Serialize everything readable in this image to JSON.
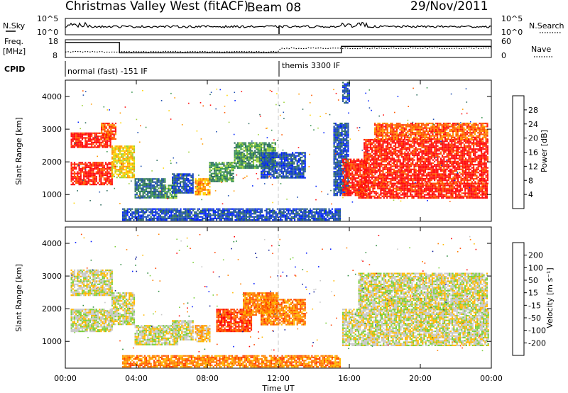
{
  "header": {
    "station": "Christmas Valley West (fitACF)",
    "beam": "Beam 08",
    "date": "29/Nov/2011"
  },
  "top_panels": {
    "nsky_label": "N.Sky",
    "nsky_ticks": [
      "10^5",
      "10^0"
    ],
    "nsearch_label": "N.Search",
    "nsearch_ticks": [
      "10^5",
      "10^0"
    ],
    "freq_label_1": "Freq.",
    "freq_label_2": "[MHz]",
    "freq_ticks": [
      "18",
      "8"
    ],
    "nave_label": "Nave",
    "nave_ticks": [
      "60",
      "0"
    ],
    "cpid_label": "CPID",
    "cpid_mode_1": "normal (fast) -151 IF",
    "cpid_mode_2": "themis 3300 IF",
    "cpid_switch_hour": 12.0,
    "freq_steps": [
      [
        0,
        16.5
      ],
      [
        3.05,
        10.6
      ],
      [
        12.05,
        10.6
      ],
      [
        15.55,
        14.3
      ],
      [
        24,
        14.3
      ]
    ]
  },
  "colors": {
    "power_scale": [
      "#0022ff",
      "#1f4fb0",
      "#2f6e60",
      "#3a9650",
      "#9ed23a",
      "#ffd400",
      "#ff9a00",
      "#ff5a00",
      "#ff1010"
    ],
    "velocity_scale": [
      "#ff0000",
      "#ff4400",
      "#ff8000",
      "#ffb800",
      "#c8c8c8",
      "#7ccf3a",
      "#2c8b3c",
      "#12209b",
      "#0018ff"
    ]
  },
  "chart_data": [
    {
      "type": "heatmap",
      "title": "Power",
      "xlabel": "Time UT",
      "ylabel": "Slant Range [km]",
      "xlim": [
        0,
        24
      ],
      "ylim": [
        180,
        4500
      ],
      "x_ticks": [
        "00:00",
        "04:00",
        "08:00",
        "12:00",
        "16:00",
        "20:00",
        "00:00"
      ],
      "y_ticks": [
        "1000",
        "2000",
        "3000",
        "4000"
      ],
      "colorbar_label": "Power [dB]",
      "colorbar_ticks": [
        "4",
        "8",
        "12",
        "16",
        "20",
        "24",
        "28"
      ],
      "regions": [
        {
          "t0": 0.3,
          "t1": 2.5,
          "r0": 2450,
          "r1": 2900,
          "level": 8
        },
        {
          "t0": 2.0,
          "t1": 2.8,
          "r0": 2700,
          "r1": 3200,
          "level": 7
        },
        {
          "t0": 0.3,
          "t1": 2.6,
          "r0": 1300,
          "r1": 2000,
          "level": 8
        },
        {
          "t0": 2.6,
          "t1": 3.9,
          "r0": 1500,
          "r1": 2500,
          "level": 5
        },
        {
          "t0": 3.9,
          "t1": 5.6,
          "r0": 900,
          "r1": 1500,
          "level": 2
        },
        {
          "t0": 5.6,
          "t1": 6.3,
          "r0": 900,
          "r1": 1300,
          "level": 3
        },
        {
          "t0": 6.0,
          "t1": 7.2,
          "r0": 1050,
          "r1": 1650,
          "level": 1
        },
        {
          "t0": 7.3,
          "t1": 8.1,
          "r0": 1000,
          "r1": 1500,
          "level": 6
        },
        {
          "t0": 8.1,
          "t1": 9.5,
          "r0": 1400,
          "r1": 2000,
          "level": 3
        },
        {
          "t0": 9.5,
          "t1": 11.8,
          "r0": 1800,
          "r1": 2600,
          "level": 3
        },
        {
          "t0": 11.0,
          "t1": 13.5,
          "r0": 1500,
          "r1": 2300,
          "level": 1
        },
        {
          "t0": 3.2,
          "t1": 15.5,
          "r0": 230,
          "r1": 580,
          "level": 1
        },
        {
          "t0": 15.1,
          "t1": 15.9,
          "r0": 1000,
          "r1": 3200,
          "level": 1
        },
        {
          "t0": 15.6,
          "t1": 16.0,
          "r0": 3800,
          "r1": 4450,
          "level": 1
        },
        {
          "t0": 15.6,
          "t1": 17.0,
          "r0": 1000,
          "r1": 2100,
          "level": 8
        },
        {
          "t0": 16.5,
          "t1": 23.8,
          "r0": 900,
          "r1": 1350,
          "level": 8
        },
        {
          "t0": 16.8,
          "t1": 23.8,
          "r0": 1350,
          "r1": 2700,
          "level": 8
        },
        {
          "t0": 17.4,
          "t1": 23.8,
          "r0": 2700,
          "r1": 3200,
          "level": 7
        }
      ]
    },
    {
      "type": "heatmap",
      "title": "Velocity",
      "xlabel": "Time UT",
      "ylabel": "Slant Range [km]",
      "xlim": [
        0,
        24
      ],
      "ylim": [
        180,
        4500
      ],
      "x_ticks": [
        "00:00",
        "04:00",
        "08:00",
        "12:00",
        "16:00",
        "20:00",
        "00:00"
      ],
      "y_ticks": [
        "1000",
        "2000",
        "3000",
        "4000"
      ],
      "colorbar_label": "Velocity [m s⁻¹]",
      "colorbar_ticks": [
        "-200",
        "-100",
        "-50",
        "-15",
        "15",
        "50",
        "100",
        "200"
      ],
      "regions": [
        {
          "t0": 0.3,
          "t1": 2.6,
          "r0": 2400,
          "r1": 3200,
          "level": 4
        },
        {
          "t0": 0.3,
          "t1": 2.6,
          "r0": 1300,
          "r1": 2000,
          "level": 4
        },
        {
          "t0": 2.6,
          "t1": 3.9,
          "r0": 1500,
          "r1": 2500,
          "level": 4
        },
        {
          "t0": 3.9,
          "t1": 6.3,
          "r0": 900,
          "r1": 1500,
          "level": 4
        },
        {
          "t0": 6.0,
          "t1": 7.2,
          "r0": 1050,
          "r1": 1650,
          "level": 4
        },
        {
          "t0": 7.3,
          "t1": 8.1,
          "r0": 1000,
          "r1": 1500,
          "level": 3
        },
        {
          "t0": 8.5,
          "t1": 10.5,
          "r0": 1300,
          "r1": 2000,
          "level": 1
        },
        {
          "t0": 10.0,
          "t1": 12.0,
          "r0": 1800,
          "r1": 2500,
          "level": 2
        },
        {
          "t0": 11.0,
          "t1": 13.5,
          "r0": 1500,
          "r1": 2300,
          "level": 2
        },
        {
          "t0": 3.2,
          "t1": 15.5,
          "r0": 230,
          "r1": 580,
          "level": 2
        },
        {
          "t0": 15.6,
          "t1": 23.8,
          "r0": 900,
          "r1": 2000,
          "level": 4
        },
        {
          "t0": 16.5,
          "t1": 23.8,
          "r0": 2000,
          "r1": 3100,
          "level": 4
        }
      ]
    }
  ]
}
